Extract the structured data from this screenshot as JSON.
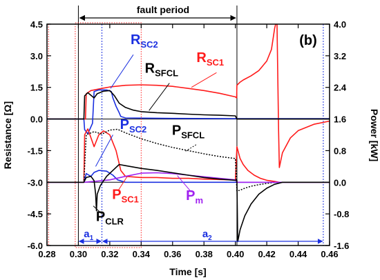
{
  "chart_data": {
    "type": "line",
    "panel_label": "(b)",
    "fault_label": "fault period",
    "xlabel": "Time [s]",
    "ylabel_left": "Resistance [Ω]",
    "ylabel_right": "Power [kW]",
    "xlim": [
      0.28,
      0.46
    ],
    "ylim_left": [
      -6.0,
      4.5
    ],
    "ylim_right": [
      -1.6,
      4.0
    ],
    "x_ticks": [
      "0.28",
      "0.30",
      "0.32",
      "0.34",
      "0.36",
      "0.38",
      "0.40",
      "0.42",
      "0.44",
      "0.46"
    ],
    "y_left_ticks": [
      "4.5",
      "3.0",
      "1.5",
      "0.0",
      "-1.5",
      "-3.0",
      "-4.5",
      "-6.0"
    ],
    "y_right_ticks": [
      "4.0",
      "3.2",
      "2.4",
      "1.6",
      "0.8",
      "0.0",
      "-0.8",
      "-1.6"
    ],
    "fault_interval": [
      0.3,
      0.401
    ],
    "interval_a1": {
      "label": "a",
      "sub": "1",
      "range": [
        0.3,
        0.315
      ]
    },
    "interval_a2": {
      "label": "a",
      "sub": "2",
      "range": [
        0.315,
        0.456
      ]
    },
    "colors": {
      "red": "#ff1a1a",
      "blue": "#1a2fe0",
      "black": "#000000",
      "purple": "#a020f0"
    },
    "annotations": [
      {
        "id": "r_sc2",
        "main": "R",
        "sub": "SC2",
        "color": "#1a2fe0"
      },
      {
        "id": "r_sfcl",
        "main": "R",
        "sub": "SFCL",
        "color": "#000000"
      },
      {
        "id": "r_sc1",
        "main": "R",
        "sub": "SC1",
        "color": "#ff1a1a"
      },
      {
        "id": "p_sc2",
        "main": "P",
        "sub": "SC2",
        "color": "#1a2fe0"
      },
      {
        "id": "p_sfcl",
        "main": "P",
        "sub": "SFCL",
        "color": "#000000"
      },
      {
        "id": "p_sc1",
        "main": "P",
        "sub": "SC1",
        "color": "#ff1a1a"
      },
      {
        "id": "p_m",
        "main": "P",
        "sub": "m",
        "color": "#a020f0"
      },
      {
        "id": "p_clr",
        "main": "P",
        "sub": "CLR",
        "color": "#000000"
      }
    ],
    "series": [
      {
        "name": "RSC1",
        "axis": "left",
        "color": "#ff1a1a",
        "x": [
          0.28,
          0.3045,
          0.305,
          0.308,
          0.315,
          0.32,
          0.33,
          0.34,
          0.35,
          0.36,
          0.37,
          0.38,
          0.39,
          0.4,
          0.4008,
          0.401,
          0.403,
          0.405,
          0.41,
          0.415,
          0.42,
          0.423,
          0.425,
          0.426,
          0.4265,
          0.4275,
          0.428,
          0.43,
          0.435,
          0.44,
          0.45,
          0.46
        ],
        "y": [
          0.0,
          0.0,
          1.2,
          1.35,
          1.45,
          1.52,
          1.6,
          1.62,
          1.6,
          1.55,
          1.45,
          1.35,
          1.22,
          1.05,
          1.0,
          1.6,
          1.75,
          1.85,
          2.05,
          2.3,
          2.75,
          3.3,
          4.3,
          4.6,
          4.6,
          -0.5,
          -2.3,
          -1.6,
          -0.9,
          -0.55,
          -0.25,
          -0.1
        ]
      },
      {
        "name": "RSC2",
        "axis": "left",
        "color": "#1a2fe0",
        "x": [
          0.28,
          0.3035,
          0.304,
          0.306,
          0.309,
          0.31,
          0.313,
          0.318,
          0.321,
          0.322,
          0.324,
          0.326,
          0.327,
          0.33,
          0.36,
          0.4,
          0.46
        ],
        "y": [
          0.0,
          0.0,
          -0.5,
          -0.7,
          -0.2,
          1.3,
          1.38,
          1.38,
          1.3,
          1.0,
          0.6,
          0.3,
          0.12,
          0.05,
          0.03,
          0.02,
          0.02
        ]
      },
      {
        "name": "RSFCL",
        "axis": "left",
        "color": "#000000",
        "x": [
          0.28,
          0.3035,
          0.304,
          0.306,
          0.31,
          0.312,
          0.316,
          0.32,
          0.323,
          0.326,
          0.33,
          0.335,
          0.34,
          0.35,
          0.36,
          0.37,
          0.38,
          0.39,
          0.4,
          0.401,
          0.46
        ],
        "y": [
          0.0,
          0.0,
          1.1,
          1.25,
          1.0,
          1.2,
          1.32,
          1.35,
          1.1,
          0.75,
          0.55,
          0.42,
          0.35,
          0.3,
          0.27,
          0.23,
          0.2,
          0.18,
          0.15,
          0.0,
          0.0
        ]
      },
      {
        "name": "PSC1",
        "axis": "right",
        "color": "#ff1a1a",
        "x": [
          0.28,
          0.3035,
          0.304,
          0.306,
          0.31,
          0.313,
          0.316,
          0.32,
          0.324,
          0.327,
          0.33,
          0.34,
          0.35,
          0.36,
          0.37,
          0.38,
          0.39,
          0.4,
          0.401,
          0.403,
          0.405,
          0.408,
          0.412,
          0.416,
          0.42,
          0.425,
          0.428,
          0.43,
          0.46
        ],
        "y": [
          0.0,
          0.0,
          1.2,
          1.35,
          0.9,
          1.2,
          1.3,
          1.2,
          0.8,
          0.3,
          0.15,
          0.12,
          0.12,
          0.1,
          0.1,
          0.08,
          0.07,
          0.06,
          0.9,
          0.6,
          0.45,
          0.3,
          0.18,
          0.1,
          0.05,
          0.02,
          0.0,
          0.0,
          0.0
        ]
      },
      {
        "name": "PSC2",
        "axis": "right",
        "color": "#1a2fe0",
        "x": [
          0.28,
          0.3035,
          0.305,
          0.308,
          0.31,
          0.313,
          0.318,
          0.322,
          0.325,
          0.33,
          0.46
        ],
        "y": [
          0.0,
          0.0,
          0.22,
          0.15,
          0.25,
          0.3,
          0.28,
          0.18,
          0.06,
          0.0,
          0.0
        ]
      },
      {
        "name": "PSFCL",
        "axis": "right",
        "color": "#000000",
        "dashed": true,
        "x": [
          0.28,
          0.3035,
          0.305,
          0.31,
          0.315,
          0.32,
          0.325,
          0.33,
          0.34,
          0.35,
          0.36,
          0.37,
          0.38,
          0.39,
          0.4,
          0.401,
          0.403,
          0.406,
          0.41,
          0.415,
          0.42,
          0.425,
          0.46
        ],
        "y": [
          0.0,
          0.0,
          1.2,
          1.28,
          1.22,
          1.32,
          1.34,
          1.25,
          1.1,
          0.98,
          0.88,
          0.8,
          0.72,
          0.65,
          0.6,
          -0.22,
          -0.2,
          -0.15,
          -0.1,
          -0.06,
          -0.03,
          0.0,
          0.0
        ]
      },
      {
        "name": "Pm",
        "axis": "right",
        "color": "#a020f0",
        "x": [
          0.28,
          0.3035,
          0.31,
          0.32,
          0.33,
          0.34,
          0.35,
          0.36,
          0.37,
          0.38,
          0.39,
          0.4,
          0.401,
          0.46
        ],
        "y": [
          0.0,
          0.0,
          0.02,
          0.06,
          0.15,
          0.23,
          0.24,
          0.22,
          0.18,
          0.14,
          0.1,
          0.06,
          0.0,
          0.0
        ]
      },
      {
        "name": "PCLR",
        "axis": "right",
        "color": "#000000",
        "x": [
          0.28,
          0.3035,
          0.305,
          0.308,
          0.31,
          0.311,
          0.3115,
          0.312,
          0.314,
          0.318,
          0.322,
          0.326,
          0.33,
          0.34,
          0.35,
          0.36,
          0.37,
          0.38,
          0.39,
          0.4,
          0.401,
          0.4015,
          0.403,
          0.406,
          0.41,
          0.415,
          0.42,
          0.425,
          0.43,
          0.46
        ],
        "y": [
          0.0,
          0.0,
          0.12,
          0.15,
          0.04,
          -0.3,
          -0.72,
          -0.3,
          -0.08,
          0.15,
          0.3,
          0.45,
          0.42,
          0.35,
          0.3,
          0.24,
          0.18,
          0.12,
          0.08,
          0.05,
          0.05,
          -1.5,
          -1.2,
          -0.85,
          -0.55,
          -0.3,
          -0.15,
          -0.05,
          0.0,
          0.0
        ]
      }
    ]
  }
}
